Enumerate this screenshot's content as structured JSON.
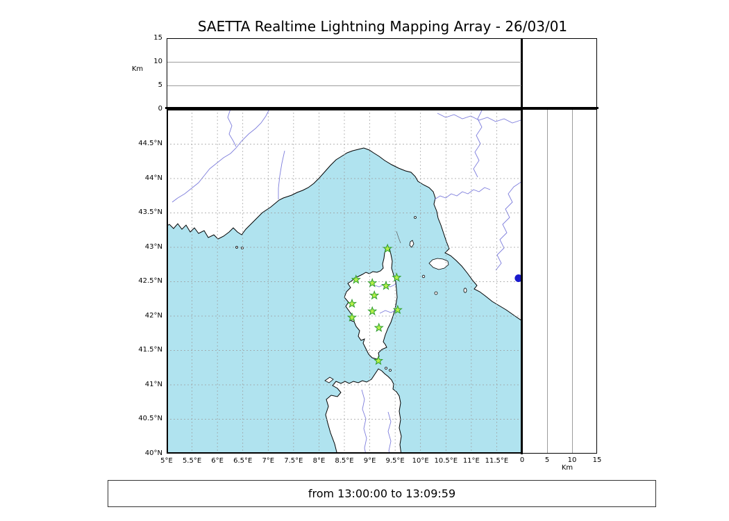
{
  "title": "SAETTA Realtime Lightning Mapping Array - 26/03/01",
  "status_bar": {
    "text": "from 13:00:00 to 13:09:59"
  },
  "axes": {
    "alt_unit": "Km",
    "alt_ticks": [
      {
        "v": 0,
        "label": "0"
      },
      {
        "v": 5,
        "label": "5"
      },
      {
        "v": 10,
        "label": "10"
      },
      {
        "v": 15,
        "label": "15"
      }
    ],
    "alt_gridlines": [
      5,
      10
    ],
    "lat_ticks": [
      {
        "v": 44.5,
        "label": "44.5°N"
      },
      {
        "v": 44,
        "label": "44°N"
      },
      {
        "v": 43.5,
        "label": "43.5°N"
      },
      {
        "v": 43,
        "label": "43°N"
      },
      {
        "v": 42.5,
        "label": "42.5°N"
      },
      {
        "v": 42,
        "label": "42°N"
      },
      {
        "v": 41.5,
        "label": "41.5°N"
      },
      {
        "v": 41,
        "label": "41°N"
      },
      {
        "v": 40.5,
        "label": "40.5°N"
      },
      {
        "v": 40,
        "label": "40°N"
      }
    ],
    "lon_ticks": [
      {
        "v": 5,
        "label": "5°E"
      },
      {
        "v": 5.5,
        "label": "5.5°E"
      },
      {
        "v": 6,
        "label": "6°E"
      },
      {
        "v": 6.5,
        "label": "6.5°E"
      },
      {
        "v": 7,
        "label": "7°E"
      },
      {
        "v": 7.5,
        "label": "7.5°E"
      },
      {
        "v": 8,
        "label": "8°E"
      },
      {
        "v": 8.5,
        "label": "8.5°E"
      },
      {
        "v": 9,
        "label": "9°E"
      },
      {
        "v": 9.5,
        "label": "9.5°E"
      },
      {
        "v": 10,
        "label": "10°E"
      },
      {
        "v": 10.5,
        "label": "10.5°E"
      },
      {
        "v": 11,
        "label": "11°E"
      },
      {
        "v": 11.5,
        "label": "11.5°E"
      }
    ]
  },
  "colors": {
    "sea": "#b0e3ef",
    "land": "#ffffff",
    "coast": "#000000",
    "grid": "#9c9c9c",
    "river": "#6f6fd8",
    "station_fill": "#b4f04a",
    "station_stroke": "#2f9e2f",
    "marker_dot": "#1a1acc"
  },
  "chart_data": {
    "type": "map",
    "title": "SAETTA Realtime Lightning Mapping Array - 26/03/01",
    "date": "26/03/01",
    "time_window": "from 13:00:00 to 13:09:59",
    "region": "Corsica, Ligurian and Tyrrhenian coasts, northern Sardinia",
    "map_extent": {
      "lon_min": 5,
      "lon_max": 12,
      "lat_min": 40,
      "lat_max": 45
    },
    "altitude_axis_km": {
      "min": 0,
      "max": 15,
      "ticks": [
        0,
        5,
        10,
        15
      ]
    },
    "grid_step_deg": 0.5,
    "stations": [
      {
        "lon": 9.35,
        "lat": 42.98
      },
      {
        "lon": 8.73,
        "lat": 42.53
      },
      {
        "lon": 9.05,
        "lat": 42.48
      },
      {
        "lon": 9.32,
        "lat": 42.44
      },
      {
        "lon": 9.53,
        "lat": 42.56
      },
      {
        "lon": 9.09,
        "lat": 42.3
      },
      {
        "lon": 8.65,
        "lat": 42.18
      },
      {
        "lon": 9.55,
        "lat": 42.09
      },
      {
        "lon": 8.65,
        "lat": 41.98
      },
      {
        "lon": 9.05,
        "lat": 42.07
      },
      {
        "lon": 9.18,
        "lat": 41.83
      },
      {
        "lon": 9.17,
        "lat": 41.35
      }
    ],
    "offshore_marker": {
      "lon": 11.93,
      "lat": 42.55
    },
    "lightning_points": []
  }
}
